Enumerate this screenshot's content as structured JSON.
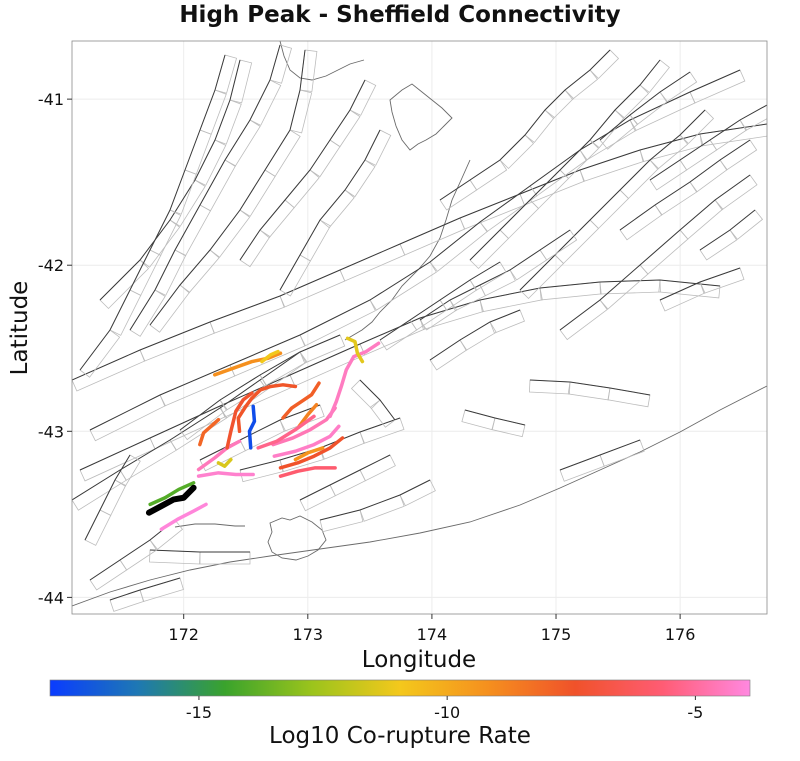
{
  "title": "High Peak - Sheffield Connectivity",
  "x_axis": {
    "label": "Longitude",
    "ticks": [
      {
        "value": 172,
        "label": "172"
      },
      {
        "value": 173,
        "label": "173"
      },
      {
        "value": 174,
        "label": "174"
      },
      {
        "value": 175,
        "label": "175"
      },
      {
        "value": 176,
        "label": "176"
      }
    ],
    "range": [
      171.1,
      176.7
    ]
  },
  "y_axis": {
    "label": "Latitude",
    "ticks": [
      {
        "value": -41,
        "label": "-41"
      },
      {
        "value": -42,
        "label": "-42"
      },
      {
        "value": -43,
        "label": "-43"
      },
      {
        "value": -44,
        "label": "-44"
      }
    ],
    "range": [
      -44.1,
      -40.65
    ]
  },
  "colorbar": {
    "label": "Log10 Co-rupture Rate",
    "range": [
      -18,
      -3.9
    ],
    "ticks": [
      {
        "value": -15,
        "label": "-15"
      },
      {
        "value": -10,
        "label": "-10"
      },
      {
        "value": -5,
        "label": "-5"
      }
    ],
    "gradient": [
      "#0a3cff",
      "#1e78b4",
      "#3aa32c",
      "#9cc41c",
      "#f4c81c",
      "#f5901e",
      "#f0522a",
      "#ff5c74",
      "#ff88e0"
    ]
  },
  "colors": {
    "fault_line": "#3a3a3a",
    "fault_box": "#bcbcbc",
    "coast": "#6a6a6a",
    "grid": "#ececec",
    "source_fault": "#000000"
  },
  "source_fault": {
    "name": "High Peak - Sheffield",
    "trace": [
      [
        171.72,
        -43.49
      ],
      [
        171.82,
        -43.45
      ],
      [
        171.92,
        -43.41
      ],
      [
        172.0,
        -43.4
      ],
      [
        172.08,
        -43.34
      ]
    ]
  },
  "ruptures": [
    {
      "rate": -14.0,
      "trace": [
        [
          171.73,
          -43.44
        ],
        [
          171.85,
          -43.4
        ],
        [
          171.96,
          -43.35
        ],
        [
          172.08,
          -43.31
        ]
      ]
    },
    {
      "rate": -4.0,
      "trace": [
        [
          171.82,
          -43.59
        ],
        [
          171.95,
          -43.53
        ],
        [
          172.08,
          -43.48
        ],
        [
          172.18,
          -43.44
        ]
      ]
    },
    {
      "rate": -4.2,
      "trace": [
        [
          172.12,
          -43.27
        ],
        [
          172.28,
          -43.25
        ],
        [
          172.42,
          -43.26
        ],
        [
          172.56,
          -43.26
        ]
      ]
    },
    {
      "rate": -4.5,
      "trace": [
        [
          172.12,
          -43.23
        ],
        [
          172.25,
          -43.16
        ],
        [
          172.35,
          -43.1
        ],
        [
          172.45,
          -43.06
        ]
      ]
    },
    {
      "rate": -8.0,
      "trace": [
        [
          172.13,
          -43.08
        ],
        [
          172.16,
          -43.01
        ],
        [
          172.22,
          -42.97
        ],
        [
          172.28,
          -42.93
        ]
      ]
    },
    {
      "rate": -11.5,
      "trace": [
        [
          172.28,
          -43.19
        ],
        [
          172.33,
          -43.21
        ],
        [
          172.38,
          -43.17
        ]
      ]
    },
    {
      "rate": -7.3,
      "trace": [
        [
          172.35,
          -43.1
        ],
        [
          172.38,
          -43.0
        ],
        [
          172.42,
          -42.88
        ],
        [
          172.48,
          -42.81
        ],
        [
          172.55,
          -42.77
        ]
      ]
    },
    {
      "rate": -7.5,
      "trace": [
        [
          172.45,
          -43.0
        ],
        [
          172.44,
          -42.92
        ],
        [
          172.5,
          -42.85
        ],
        [
          172.55,
          -42.8
        ],
        [
          172.62,
          -42.75
        ],
        [
          172.7,
          -42.73
        ],
        [
          172.8,
          -42.72
        ],
        [
          172.9,
          -42.73
        ]
      ]
    },
    {
      "rate": -17.5,
      "trace": [
        [
          172.56,
          -42.85
        ],
        [
          172.57,
          -42.94
        ],
        [
          172.53,
          -43.0
        ],
        [
          172.54,
          -43.1
        ]
      ]
    },
    {
      "rate": -9.2,
      "trace": [
        [
          172.25,
          -42.66
        ],
        [
          172.4,
          -42.62
        ],
        [
          172.55,
          -42.58
        ],
        [
          172.68,
          -42.56
        ],
        [
          172.78,
          -42.53
        ]
      ]
    },
    {
      "rate": -11.0,
      "trace": [
        [
          172.63,
          -42.58
        ],
        [
          172.7,
          -42.54
        ],
        [
          172.76,
          -42.52
        ]
      ]
    },
    {
      "rate": -7.8,
      "trace": [
        [
          172.8,
          -42.92
        ],
        [
          172.87,
          -42.86
        ],
        [
          172.95,
          -42.82
        ],
        [
          173.03,
          -42.78
        ],
        [
          173.09,
          -42.71
        ]
      ]
    },
    {
      "rate": -8.8,
      "trace": [
        [
          172.93,
          -42.97
        ],
        [
          173.0,
          -42.9
        ],
        [
          173.07,
          -42.84
        ]
      ]
    },
    {
      "rate": -4.6,
      "trace": [
        [
          172.72,
          -43.08
        ],
        [
          172.88,
          -43.04
        ],
        [
          173.02,
          -42.99
        ],
        [
          173.15,
          -42.93
        ],
        [
          173.22,
          -42.86
        ]
      ]
    },
    {
      "rate": -5.3,
      "trace": [
        [
          172.6,
          -43.1
        ],
        [
          172.75,
          -43.06
        ],
        [
          172.9,
          -42.99
        ],
        [
          173.05,
          -42.91
        ]
      ]
    },
    {
      "rate": -4.3,
      "trace": [
        [
          172.73,
          -43.15
        ],
        [
          172.9,
          -43.12
        ],
        [
          173.05,
          -43.08
        ],
        [
          173.18,
          -43.03
        ],
        [
          173.25,
          -42.97
        ]
      ]
    },
    {
      "rate": -7.4,
      "trace": [
        [
          172.78,
          -43.22
        ],
        [
          172.92,
          -43.19
        ],
        [
          173.05,
          -43.15
        ],
        [
          173.18,
          -43.1
        ],
        [
          173.28,
          -43.04
        ]
      ]
    },
    {
      "rate": -9.3,
      "trace": [
        [
          172.9,
          -43.17
        ],
        [
          173.0,
          -43.13
        ],
        [
          173.12,
          -43.1
        ]
      ]
    },
    {
      "rate": -5.8,
      "trace": [
        [
          172.78,
          -43.27
        ],
        [
          172.92,
          -43.24
        ],
        [
          173.06,
          -43.22
        ],
        [
          173.22,
          -43.22
        ]
      ]
    },
    {
      "rate": -4.4,
      "trace": [
        [
          173.18,
          -42.91
        ],
        [
          173.23,
          -42.82
        ],
        [
          173.27,
          -42.73
        ],
        [
          173.31,
          -42.63
        ],
        [
          173.37,
          -42.55
        ],
        [
          173.47,
          -42.52
        ],
        [
          173.57,
          -42.47
        ]
      ]
    },
    {
      "rate": -11.3,
      "trace": [
        [
          173.32,
          -42.44
        ],
        [
          173.38,
          -42.46
        ],
        [
          173.4,
          -42.53
        ],
        [
          173.44,
          -42.58
        ]
      ]
    }
  ]
}
